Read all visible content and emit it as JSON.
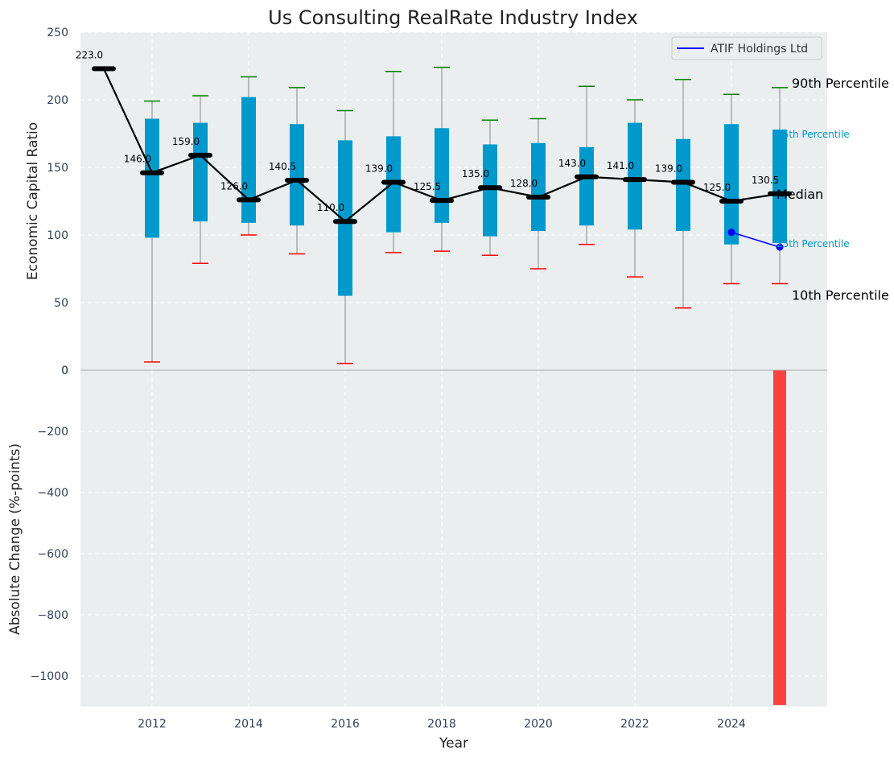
{
  "title": "Us Consulting RealRate Industry Index",
  "xlabel": "Year",
  "colors": {
    "panel_bg": "#eaeeee",
    "box": "#0099cc",
    "whisker": "#888888",
    "cap_top": "#008000",
    "cap_bottom": "#ff0000",
    "median": "#000000",
    "company": "#0000ff",
    "bar": "#ff4040"
  },
  "chart_data": [
    {
      "type": "box",
      "ylabel": "Economic Capital Ratio",
      "ylim": [
        0,
        250
      ],
      "yticks": [
        0,
        50,
        100,
        150,
        200,
        250
      ],
      "x_ticks": [
        2012,
        2014,
        2016,
        2018,
        2020,
        2022,
        2024
      ],
      "grid": true,
      "legend": {
        "position": "top-right",
        "entries": [
          "ATIF Holdings Ltd"
        ]
      },
      "years": [
        2011,
        2012,
        2013,
        2014,
        2015,
        2016,
        2017,
        2018,
        2019,
        2020,
        2021,
        2022,
        2023,
        2024,
        2025
      ],
      "p10": [
        null,
        6,
        79,
        100,
        86,
        5,
        87,
        88,
        85,
        75,
        93,
        69,
        46,
        64,
        64
      ],
      "p25": [
        null,
        98,
        110,
        109,
        107,
        55,
        102,
        109,
        99,
        103,
        107,
        104,
        103,
        93,
        94
      ],
      "median": [
        223.0,
        146.0,
        159.0,
        126.0,
        140.5,
        110.0,
        139.0,
        125.5,
        135.0,
        128.0,
        143.0,
        141.0,
        139.0,
        125.0,
        130.5
      ],
      "median_labels": [
        "223.0",
        "146.0",
        "159.0",
        "126.0",
        "140.5",
        "110.0",
        "139.0",
        "125.5",
        "135.0",
        "128.0",
        "143.0",
        "141.0",
        "139.0",
        "125.0",
        "130.5"
      ],
      "p75": [
        null,
        186,
        183,
        202,
        182,
        170,
        173,
        179,
        167,
        168,
        165,
        183,
        171,
        182,
        178
      ],
      "p90": [
        null,
        199,
        203,
        217,
        209,
        192,
        221,
        224,
        185,
        186,
        210,
        200,
        215,
        204,
        209
      ],
      "series": [
        {
          "name": "ATIF Holdings Ltd",
          "x": [
            2024,
            2025
          ],
          "y": [
            102,
            91
          ]
        }
      ],
      "annotations": {
        "p90": "90th Percentile",
        "p75": "75th Percentile",
        "median": "Median",
        "p25": "25th Percentile",
        "p10": "10th Percentile"
      }
    },
    {
      "type": "bar",
      "ylabel": "Absolute Change (%-points)",
      "ylim": [
        -1100,
        0
      ],
      "yticks": [
        0,
        -200,
        -400,
        -600,
        -800,
        -1000
      ],
      "ytick_labels": [
        "0",
        "−200",
        "−400",
        "−600",
        "−800",
        "−1000"
      ],
      "x_ticks": [
        2012,
        2014,
        2016,
        2018,
        2020,
        2022,
        2024
      ],
      "grid": true,
      "categories": [
        2025
      ],
      "values": [
        -1095
      ]
    }
  ]
}
